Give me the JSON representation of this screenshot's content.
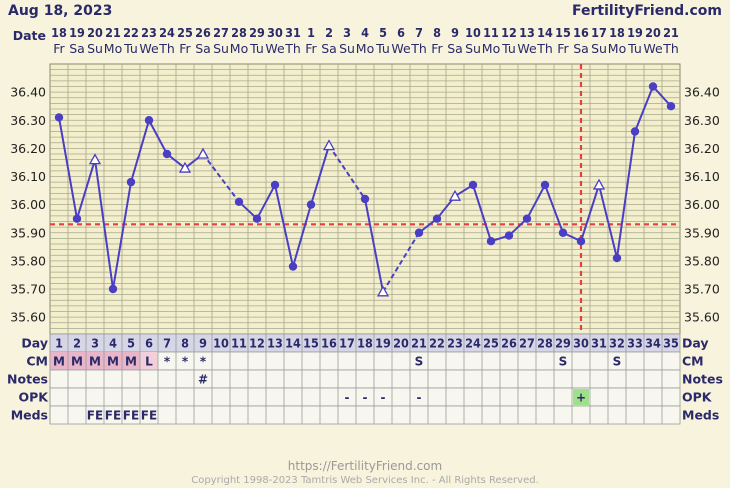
{
  "header": {
    "date": "Aug 18, 2023",
    "brand": "FertilityFriend.com",
    "date_row_label": "Date"
  },
  "chart_data": {
    "type": "line",
    "dates": [
      "18",
      "19",
      "20",
      "21",
      "22",
      "23",
      "24",
      "25",
      "26",
      "27",
      "28",
      "29",
      "30",
      "31",
      "1",
      "2",
      "3",
      "4",
      "5",
      "6",
      "7",
      "8",
      "9",
      "10",
      "11",
      "12",
      "13",
      "14",
      "15",
      "16",
      "17",
      "18",
      "19",
      "20",
      "21"
    ],
    "weekdays": [
      "Fr",
      "Sa",
      "Su",
      "Mo",
      "Tu",
      "We",
      "Th",
      "Fr",
      "Sa",
      "Su",
      "Mo",
      "Tu",
      "We",
      "Th",
      "Fr",
      "Sa",
      "Su",
      "Mo",
      "Tu",
      "We",
      "Th",
      "Fr",
      "Sa",
      "Su",
      "Mo",
      "Tu",
      "We",
      "Th",
      "Fr",
      "Sa",
      "Su",
      "Mo",
      "Tu",
      "We",
      "Th"
    ],
    "cycle_days": [
      1,
      2,
      3,
      4,
      5,
      6,
      7,
      8,
      9,
      10,
      11,
      12,
      13,
      14,
      15,
      16,
      17,
      18,
      19,
      20,
      21,
      22,
      23,
      24,
      25,
      26,
      27,
      28,
      29,
      30,
      31,
      32,
      33,
      34,
      35
    ],
    "temps": [
      36.31,
      35.95,
      36.16,
      35.7,
      36.08,
      36.3,
      36.18,
      36.13,
      36.18,
      null,
      36.01,
      35.95,
      36.07,
      35.78,
      36.0,
      36.21,
      null,
      36.02,
      35.69,
      null,
      35.9,
      35.95,
      36.03,
      36.07,
      35.87,
      35.89,
      35.95,
      36.07,
      35.9,
      35.87,
      36.07,
      35.81,
      36.26,
      36.42,
      36.35
    ],
    "point_marker": [
      "dot",
      "dot",
      "open",
      "dot",
      "dot",
      "dot",
      "dot",
      "open",
      "open",
      null,
      "dot",
      "dot",
      "dot",
      "dot",
      "dot",
      "open",
      null,
      "dot",
      "open",
      null,
      "dot",
      "dot",
      "open",
      "dot",
      "dot",
      "dot",
      "dot",
      "dot",
      "dot",
      "dot",
      "open",
      "dot",
      "dot",
      "dot",
      "dot"
    ],
    "ylim": [
      35.54,
      36.5
    ],
    "yticks": [
      "36.40",
      "36.30",
      "36.20",
      "36.10",
      "36.00",
      "35.90",
      "35.80",
      "35.70",
      "35.60"
    ],
    "coverline": 35.93,
    "ovulation_day": 30,
    "colors": {
      "line": "#4a3fc4",
      "coverline": "#e04040",
      "grid": "#a8a890",
      "plot_bg": "#f3efcc"
    }
  },
  "rows": {
    "day_label": "Day",
    "cm": {
      "label": "CM",
      "values": [
        "M",
        "M",
        "M",
        "M",
        "M",
        "L",
        "*",
        "*",
        "*",
        "",
        "",
        "",
        "",
        "",
        "",
        "",
        "",
        "",
        "",
        "",
        "S",
        "",
        "",
        "",
        "",
        "",
        "",
        "",
        "S",
        "",
        "",
        "S",
        "",
        "",
        ""
      ]
    },
    "notes": {
      "label": "Notes",
      "values": [
        "",
        "",
        "",
        "",
        "",
        "",
        "",
        "",
        "#",
        "",
        "",
        "",
        "",
        "",
        "",
        "",
        "",
        "",
        "",
        "",
        "",
        "",
        "",
        "",
        "",
        "",
        "",
        "",
        "",
        "",
        "",
        "",
        "",
        "",
        ""
      ]
    },
    "opk": {
      "label": "OPK",
      "values": [
        "",
        "",
        "",
        "",
        "",
        "",
        "",
        "",
        "",
        "",
        "",
        "",
        "",
        "",
        "",
        "",
        "-",
        "-",
        "-",
        "",
        "-",
        "",
        "",
        "",
        "",
        "",
        "",
        "",
        "",
        "+",
        "",
        "",
        "",
        "",
        ""
      ]
    },
    "meds": {
      "label": "Meds",
      "values": [
        "",
        "",
        "FE",
        "FE",
        "FE",
        "FE",
        "",
        "",
        "",
        "",
        "",
        "",
        "",
        "",
        "",
        "",
        "",
        "",
        "",
        "",
        "",
        "",
        "",
        "",
        "",
        "",
        "",
        "",
        "",
        "",
        "",
        "",
        "",
        "",
        ""
      ]
    }
  },
  "footer": {
    "url": "https://FertilityFriend.com",
    "copyright": "Copyright 1998-2023 Tamtris Web Services Inc. - All Rights Reserved."
  }
}
